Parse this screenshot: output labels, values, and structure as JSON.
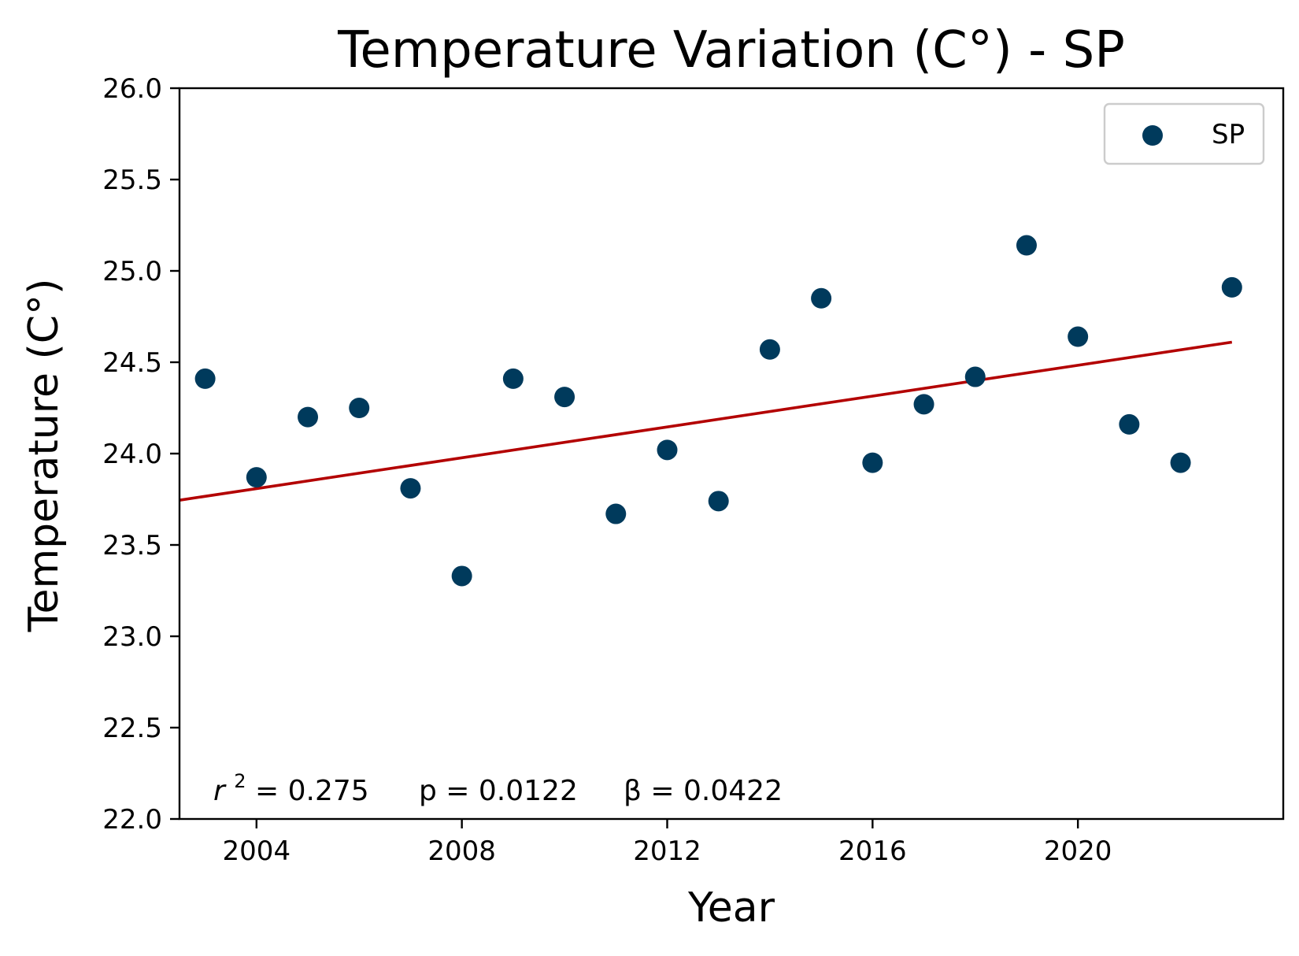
{
  "chart_data": {
    "type": "scatter",
    "title": "Temperature Variation (C°) - SP",
    "xlabel": "Year",
    "ylabel": "Temperature (C°)",
    "xlim": [
      2002.5,
      2024.0
    ],
    "ylim": [
      22.0,
      26.0
    ],
    "xticks": [
      2004,
      2008,
      2012,
      2016,
      2020
    ],
    "yticks": [
      22.0,
      22.5,
      23.0,
      23.5,
      24.0,
      24.5,
      25.0,
      25.5,
      26.0
    ],
    "grid": false,
    "legend": {
      "position": "top-right",
      "entries": [
        "SP"
      ]
    },
    "series": [
      {
        "name": "SP",
        "color": "#003a5c",
        "x": [
          2003,
          2004,
          2005,
          2006,
          2007,
          2008,
          2009,
          2010,
          2011,
          2012,
          2013,
          2014,
          2015,
          2016,
          2017,
          2018,
          2019,
          2020,
          2021,
          2022,
          2023
        ],
        "y": [
          24.41,
          23.87,
          24.2,
          24.25,
          23.81,
          23.33,
          24.41,
          24.31,
          23.67,
          24.02,
          23.74,
          24.57,
          24.85,
          23.95,
          24.27,
          24.42,
          25.14,
          24.64,
          24.16,
          23.95,
          24.91
        ]
      }
    ],
    "trendline": {
      "color": "#b30000",
      "x": [
        2002.5,
        2023.0
      ],
      "y": [
        23.745,
        24.61
      ]
    },
    "annotation": {
      "r2_label": "r",
      "r2_exponent": "2",
      "r2_value": " = 0.275",
      "p_text": "p = 0.0122",
      "beta_text": "β = 0.0422"
    }
  }
}
